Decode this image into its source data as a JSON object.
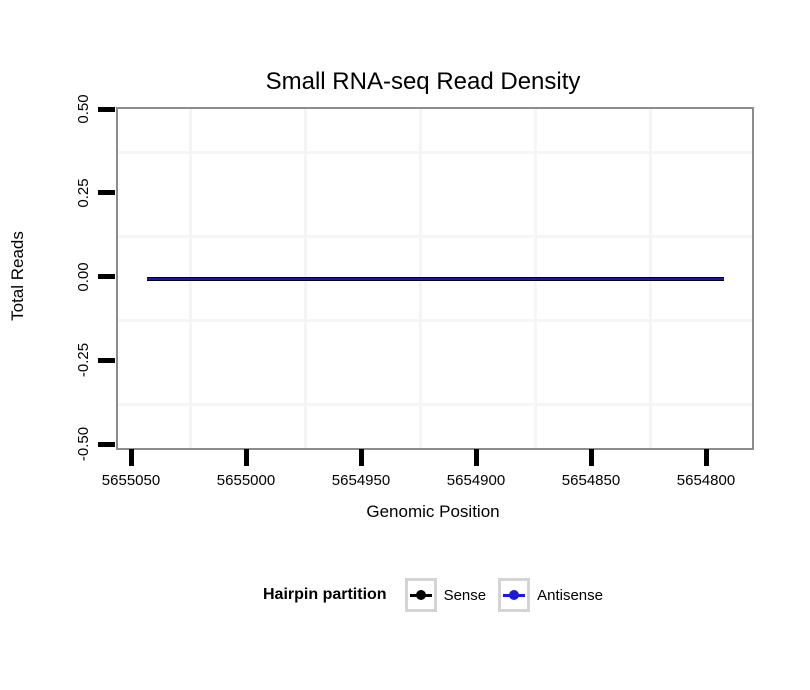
{
  "chart_data": {
    "type": "line",
    "title": "Small RNA-seq Read Density",
    "xlabel": "Genomic Position",
    "ylabel": "Total Reads",
    "x_tick_labels": [
      "5655050",
      "5655000",
      "5654950",
      "5654900",
      "5654850",
      "5654800"
    ],
    "x_ticks": [
      5655050,
      5655000,
      5654950,
      5654900,
      5654850,
      5654800
    ],
    "x_axis_reversed": true,
    "y_tick_labels": [
      "0.50",
      "0.25",
      "0.00",
      "-0.25",
      "-0.50"
    ],
    "y_ticks": [
      0.5,
      0.25,
      0.0,
      -0.25,
      -0.5
    ],
    "ylim": [
      -0.5,
      0.5
    ],
    "grid": "minor-gridlines-only",
    "series": [
      {
        "name": "Sense",
        "color": "#000000",
        "points": [
          {
            "x": 5655044,
            "y": 0.0
          },
          {
            "x": 5654793,
            "y": 0.0
          }
        ]
      },
      {
        "name": "Antisense",
        "color": "#1b1bd8",
        "points": [
          {
            "x": 5655044,
            "y": 0.0
          },
          {
            "x": 5654793,
            "y": 0.0
          }
        ]
      }
    ],
    "legend": {
      "title": "Hairpin partition",
      "position": "bottom",
      "entries": [
        {
          "label": "Sense",
          "color": "#000000"
        },
        {
          "label": "Antisense",
          "color": "#1b1bd8"
        }
      ]
    },
    "colors": {
      "panel_border": "#8c8c8c",
      "minor_gridline": "#f5f5f5",
      "tick": "#000000",
      "legend_key_border": "#d4d4d4",
      "background": "#ffffff"
    }
  }
}
